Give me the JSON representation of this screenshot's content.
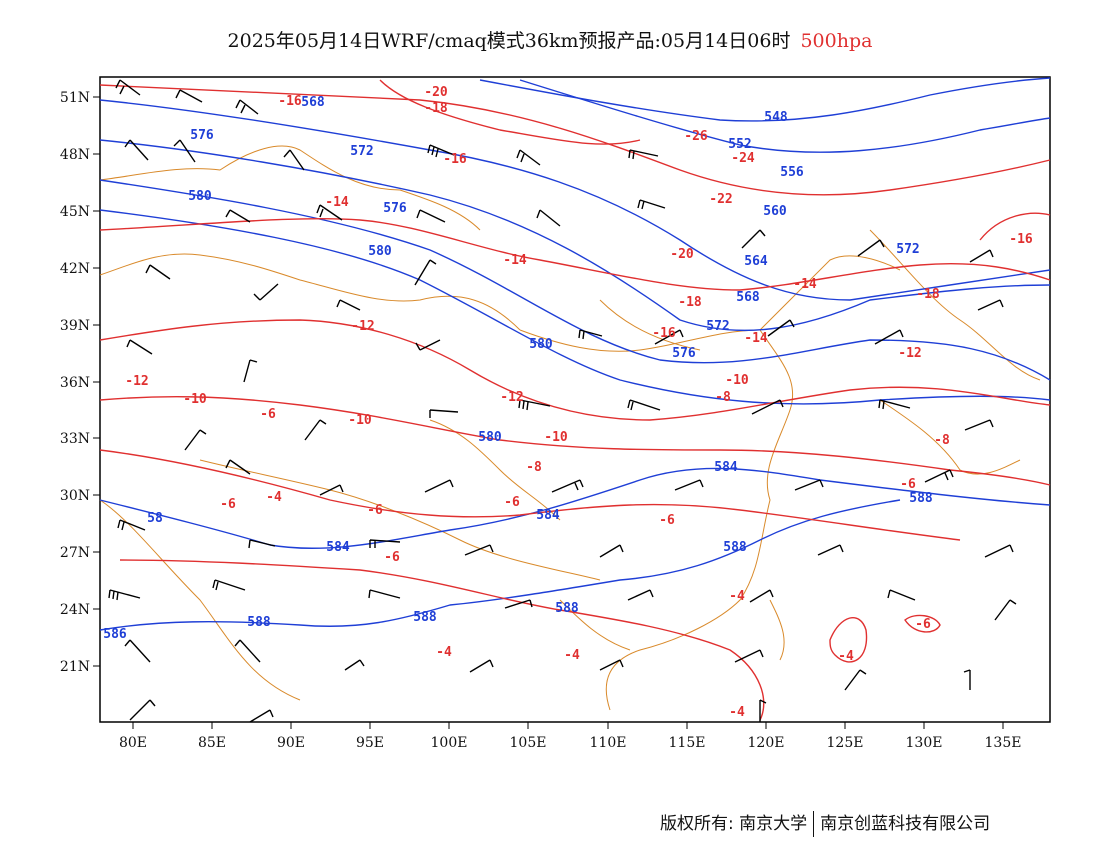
{
  "title": {
    "text": "2025年05月14日WRF/cmaq模式36km预报产品:05月14日06时",
    "level": "500hpa"
  },
  "footer": {
    "left": "版权所有: 南京大学",
    "right": "南京创蓝科技有限公司"
  },
  "colors": {
    "height_contour": "#1f3fd6",
    "temp_contour": "#e03030",
    "coastline": "#d98a2b",
    "wind_barb": "#000000"
  },
  "axes": {
    "lon_ticks": [
      "80E",
      "85E",
      "90E",
      "95E",
      "100E",
      "105E",
      "110E",
      "115E",
      "120E",
      "125E",
      "130E",
      "135E"
    ],
    "lat_ticks": [
      "51N",
      "48N",
      "45N",
      "42N",
      "39N",
      "36N",
      "33N",
      "30N",
      "27N",
      "24N",
      "21N"
    ]
  },
  "height_labels": [
    "568",
    "576",
    "572",
    "576",
    "580",
    "580",
    "580",
    "580",
    "584",
    "584",
    "584",
    "588",
    "588",
    "588",
    "588",
    "548",
    "552",
    "556",
    "560",
    "564",
    "568",
    "572",
    "576",
    "572",
    "588",
    "58",
    "586"
  ],
  "temp_labels": [
    "-16",
    "-18",
    "-16",
    "-20",
    "-18",
    "-16",
    "-14",
    "-14",
    "-12",
    "-12",
    "-12",
    "-10",
    "-10",
    "-10",
    "-8",
    "-8",
    "-6",
    "-6",
    "-6",
    "-6",
    "-6",
    "-4",
    "-4",
    "-4",
    "-4",
    "-4",
    "-26",
    "-24",
    "-22",
    "-20",
    "-18",
    "-16",
    "-14",
    "-14",
    "-12",
    "-10",
    "-8",
    "-6",
    "-6",
    "-4",
    "-6"
  ],
  "chart_data": {
    "type": "map",
    "lon_range": [
      "78E",
      "138E"
    ],
    "lat_range": [
      "18N",
      "52N"
    ],
    "variables": [
      "500hPa geopotential height (blue)",
      "500hPa temperature (red)",
      "wind barbs (black)"
    ]
  }
}
